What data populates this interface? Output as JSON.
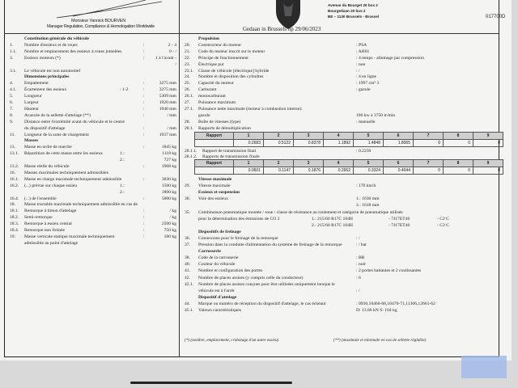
{
  "header": {
    "signatory": "Monsieur Yannick BOURVEN",
    "signatory_title": "Manager Regulation, Compliance & Homologation Worldwide",
    "address": [
      "Avenue du Bourget 20 box 2",
      "Bourgetlaan 20 bus 2",
      "BE – 1130 Brussels - Brussel"
    ],
    "reference": "017700D",
    "place_date": "Gedaan in Brussels op 29/06/2023"
  },
  "left_rows": [
    {
      "h": "Constitution générale du véhicule"
    },
    {
      "n": "1.",
      "l": "Nombre d'essieux et de roues",
      "c": ":",
      "v": "2 - 4"
    },
    {
      "n": "1.1.",
      "l": "Nombre et emplacement des essieux à roues jumelées",
      "c": ":",
      "v": "0 - /"
    },
    {
      "n": "3.",
      "l": "Essieux moteurs (*)",
      "c": ":",
      "v": "1 à l'avant -"
    },
    {
      "v": "/"
    },
    {
      "n": "3.1.",
      "l": "Le véhicule est non automotief"
    },
    {
      "h": "Dimensions principales"
    },
    {
      "n": "4.",
      "l": "Empattement",
      "c": ":",
      "v": "3275 mm"
    },
    {
      "n": "4.1.",
      "l": "Écartement des essieux",
      "s": ": 1-2",
      "c": ":",
      "v": "3275 mm"
    },
    {
      "n": "5.",
      "l": "Longueur",
      "c": ":",
      "v": "5309 mm"
    },
    {
      "n": "6.",
      "l": "Largeur",
      "c": ":",
      "v": "1920 mm"
    },
    {
      "n": "7.",
      "l": "Hauteur",
      "c": ":",
      "v": "1940 mm"
    },
    {
      "n": "8.",
      "l": "Avancée de la sellette d'attelage (**)",
      "c": ":",
      "v": "/ mm"
    },
    {
      "n": "9.",
      "l": "Distance entre l'extrémité avant du véhicule et le centre"
    },
    {
      "l": "du dispositif d'attelage",
      "c": ":",
      "v": "/ mm"
    },
    {
      "n": "11.",
      "l": "Longueur de la zone de chargement",
      "c": ":",
      "v": "1937 mm"
    },
    {
      "h": "Masses"
    },
    {
      "n": "13.",
      "l": "Masse en ordre de marche",
      "c": ":",
      "v": "1845 kg"
    },
    {
      "n": "13.1.",
      "l": "Répartition de cette masse entre les essieux",
      "s": "1.:",
      "v": "1118 kg"
    },
    {
      "s": "2.:",
      "v": "727 kg"
    },
    {
      "n": "13.2.",
      "l": "Masse réelle du véhicule",
      "c": ":",
      "v": "1908 kg"
    },
    {
      "n": "16.",
      "l": "Masses maximales techniquement admissibles"
    },
    {
      "n": "16.1.",
      "l": "Masse en charge maximale techniquement admissible",
      "c": ":",
      "v": "3030 kg"
    },
    {
      "n": "16.2.",
      "l": "(...) prévue sur chaque essieu",
      "s": "1.:",
      "v": "1500 kg"
    },
    {
      "s": "2.:",
      "v": "1800 kg"
    },
    {
      "n": "16.4.",
      "l": "(...) de l'ensemble",
      "c": ":",
      "v": "5000 kg"
    },
    {
      "n": "18.",
      "l": "Masse tractable maximale techniquement admissible en cas de"
    },
    {
      "n": "18.1.",
      "l": "Remorque à timon d'attelage",
      "c": ":",
      "v": "/ kg"
    },
    {
      "n": "18.2.",
      "l": "Semi-remorque",
      "c": ":",
      "v": "/ kg"
    },
    {
      "n": "18.3.",
      "l": "Remorque à essieu central",
      "c": ":",
      "v": "2500 kg"
    },
    {
      "n": "18.4.",
      "l": "Remorque non freinée",
      "c": ":",
      "v": "750 kg"
    },
    {
      "n": "19.",
      "l": "Masse verticale statique maximale techniquement",
      "c": ":",
      "v": "100 kg"
    },
    {
      "l": "admissible au point d'attelage"
    }
  ],
  "right_rows_top": [
    {
      "h": "Propulsion"
    },
    {
      "n": "20.",
      "l": "Constructeur du moteur",
      "v": ": PSA"
    },
    {
      "n": "21.",
      "l": "Code du moteur inscrit sur le moteur",
      "v": ": AH01"
    },
    {
      "n": "22.",
      "l": "Principe de fonctionnement",
      "v": ": 4 temps - allumage par compression"
    },
    {
      "n": "23.",
      "l": "Électrique pur",
      "v": ": non"
    },
    {
      "n": "23.1.",
      "l": "Classe de véhicule [électrique] hybride",
      "v": ": /"
    },
    {
      "n": "24.",
      "l": "Nombre et disposition des cylindres",
      "v": ": 4 en ligne"
    },
    {
      "n": "25.",
      "l": "Capacité du moteur",
      "v": ": 1997 cm³ 3"
    },
    {
      "n": "26.",
      "l": "Carburant",
      "v": ": gazole"
    },
    {
      "n": "26.1.",
      "l": "monocarburant"
    },
    {
      "n": "27.",
      "l": "Puissance maximum"
    },
    {
      "n": "27.1.",
      "l": "Puissance nette maximale (moteur à combustion interne):"
    },
    {
      "l": "gazole",
      "v": "    106 kw  à  3750 tr/min"
    },
    {
      "n": "28.",
      "l": "Boîte de vitesses (type)",
      "v": ": manuelle"
    },
    {
      "n": "28.1.",
      "l": "Rapports de démultiplication"
    }
  ],
  "gear_table": {
    "header": [
      "Rapport",
      "1",
      "2",
      "3",
      "4",
      "5",
      "6",
      "7",
      "8",
      "9"
    ],
    "values": [
      "",
      "0.2683",
      "0.5122",
      "0.8378",
      "1.1892",
      "1.4848",
      "1.8065",
      "0",
      "0",
      "0"
    ]
  },
  "final_drive": {
    "n1": "28.1.1.",
    "l1": "Rapport de transmission final",
    "v1": ": 0.2239",
    "n2": "28.1.2.",
    "l2": "Rapports de transmission finale"
  },
  "final_table": {
    "header": [
      "Rapport",
      "1",
      "2",
      "3",
      "4",
      "5",
      "6",
      "7",
      "8",
      "9"
    ],
    "values": [
      "",
      "0.0601",
      "0.1147",
      "0.1876",
      "0.2662",
      "0.3324",
      "0.4044",
      "0",
      "0",
      "0"
    ]
  },
  "right_rows_bottom": [
    {
      "h": "Vitesse maximale"
    },
    {
      "n": "29.",
      "l": "Vitesse maximale",
      "v": ": 170 km/h"
    },
    {
      "h": "Essieux et suspension"
    },
    {
      "n": "30.",
      "l": "Voie des essieux",
      "v": "        1.: 1630 mm"
    },
    {
      "v": "        2.: 1618 mm"
    },
    {
      "n": "35.",
      "l": "Combinaison pneumatique montée / roue / classe de résistance au roulement et catégorie de pneumatique utilisée"
    },
    {
      "l": "pour la détermination des émissions de CO 2",
      "t1": "1.: 215/60 R17C 104H",
      "t2": "- 7J17ET46",
      "t3": "- C2 C"
    },
    {
      "t1": "2.: 215/60 R17C 104H",
      "t2": "- 7J17ET46",
      "t3": "- C2 C"
    },
    {
      "h": "Dispositifs de freinage"
    },
    {
      "n": "36.",
      "l": "Connexions pour le freinage de la remorque",
      "v": ": /"
    },
    {
      "n": "37.",
      "l": "Pression dans la conduite d'alimentation du système de freinage de la remorque",
      "v": ": / bar"
    },
    {
      "h": "Carrosserie"
    },
    {
      "n": "38.",
      "l": "Code de la carrosserie",
      "v": ": BB"
    },
    {
      "n": "40.",
      "l": "Couleur du véhicule",
      "v": ": noir"
    },
    {
      "n": "41.",
      "l": "Nombre et configuration des portes",
      "v": ": 2 portes battantes et 2 coulissantes"
    },
    {
      "n": "42.",
      "l": "Nombre de places assises (y compris celle du conducteur)",
      "v": ": 6"
    },
    {
      "n": "42.1.",
      "l": "Nombre de places assises conçues pour être utilisées uniquement lorsque le"
    },
    {
      "l": "véhicule est à l'arrêt",
      "v": ": /"
    },
    {
      "h": "Dispositif d'attelage"
    },
    {
      "n": "44.",
      "l": "Marque ou numéro de réception du dispositif d'attelage, le cas échéant",
      "v": ": 0930,10466-68,10470-71,11306,12661-62"
    },
    {
      "n": "45.1.",
      "l": "Valeurs caractéristiques",
      "v": "D: 13.86 kN    S: 104 kg"
    }
  ],
  "footnotes": [
    "(*) (nombre, emplacement, crabotage d'un autre essieu)",
    "(**) (maximale et minimale en cas de sellette réglable)"
  ]
}
